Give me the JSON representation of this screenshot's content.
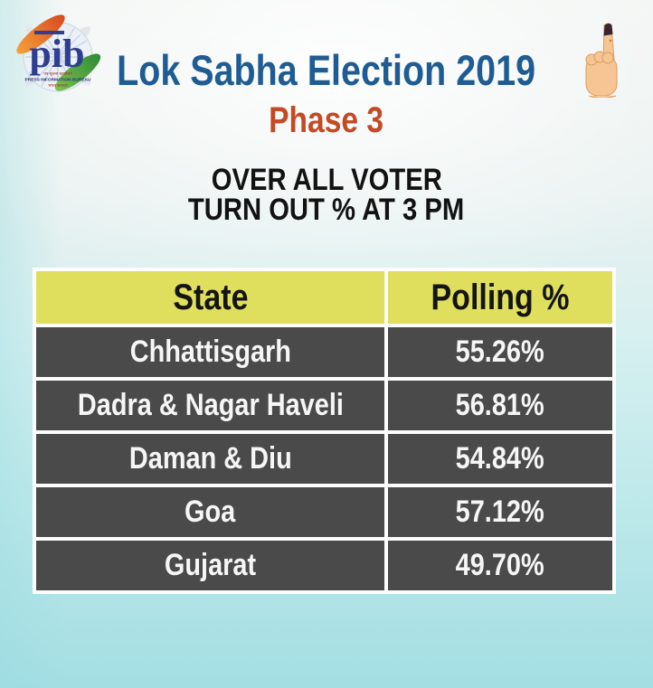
{
  "header": {
    "title": "Lok Sabha Election 2019",
    "phase": "Phase 3",
    "subtitle_line1": "OVER ALL VOTER",
    "subtitle_line2": "TURN OUT % AT 3 PM"
  },
  "logo": {
    "text": "pib",
    "hindi_line1": "पत्र सूचना कार्यालय",
    "english_line": "PRESS INFORMATION BUREAU",
    "hindi_line2": "भारत सरकार"
  },
  "icons": {
    "logo": "pib-logo",
    "hand": "inked-finger-voting-hand"
  },
  "table": {
    "columns": [
      "State",
      "Polling %"
    ],
    "rows": [
      {
        "state": "Chhattisgarh",
        "polling": "55.26%"
      },
      {
        "state": "Dadra & Nagar Haveli",
        "polling": "56.81%"
      },
      {
        "state": "Daman & Diu",
        "polling": "54.84%"
      },
      {
        "state": "Goa",
        "polling": "57.12%"
      },
      {
        "state": "Gujarat",
        "polling": "49.70%"
      }
    ]
  },
  "chart_data": {
    "type": "table",
    "title": "Lok Sabha Election 2019 — Phase 3 — Over All Voter Turn Out % at 3 PM",
    "columns": [
      "State",
      "Polling %"
    ],
    "categories": [
      "Chhattisgarh",
      "Dadra & Nagar Haveli",
      "Daman & Diu",
      "Goa",
      "Gujarat"
    ],
    "values": [
      55.26,
      56.81,
      54.84,
      57.12,
      49.7
    ]
  },
  "colors": {
    "title_blue": "#1e5c93",
    "phase_orange": "#c54a24",
    "subtitle_black": "#121212",
    "header_yellow": "#e0de5d",
    "row_gray": "#4a4a4a",
    "table_border_white": "#fdfdfd",
    "background_cyan": "#a3dee3",
    "ink_mark": "#3a2430",
    "skin_tone": "#f5c593"
  }
}
